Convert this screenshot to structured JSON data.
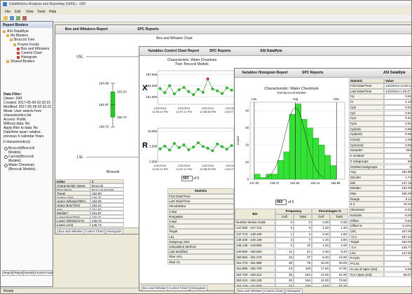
{
  "window": {
    "title": "DataMetrics Analysis and Reporting (GIKE) - DAT",
    "menu": [
      "File",
      "Edit",
      "View",
      "Tools",
      "Help"
    ],
    "status": "Ready"
  },
  "binders": {
    "title": "Report Binders",
    "tree": [
      "ASI DataMyte",
      "My Binders",
      "Broccoli Tree",
      "Frozen Foods",
      "Box and Whiskers",
      "Control Chart",
      "Histogram",
      "Shared Binders"
    ],
    "filter": [
      "Data Filter:",
      "Owner: DAT",
      "Created: 2017-05-09 02:32:23",
      "Modified: 2017-05-09 02:32:23",
      "Mode: User selects from",
      "characteristics list",
      "Access: Public",
      "Without data: No",
      "Apply filter to data: No",
      "Date/time span: relative,",
      "previous 4 calendar Years"
    ],
    "count": "3 characteristic(s)",
    "characteristics": [
      "Broccoli(Broccoli",
      "Models)",
      "Carrots(Broccoli",
      "Models)",
      "Water Chestnuts",
      "(Broccoli Models)"
    ],
    "tabs": [
      "Report",
      "Report",
      "Events",
      "Frozen Foods"
    ]
  },
  "box_report": {
    "tabs": [
      "Box and Whiskers Report",
      "SPC Reports"
    ],
    "title": "Box and Whisker Chart",
    "table": {
      "header": [
        "Index",
        "1"
      ],
      "rows": [
        [
          "Characteristic Name",
          "Broccoli"
        ],
        [
          "Part Name",
          "Broccoli Models"
        ],
        [
          "Target",
          "152.00"
        ],
        [
          "Upper Limit",
          "156.74"
        ],
        [
          "Upper Whisker(99%)",
          "154.09"
        ],
        [
          "Upper Box(75%)",
          "153.24"
        ],
        [
          "Avg",
          "151.97"
        ],
        [
          "Median*",
          "151.97"
        ],
        [
          "Lower Box(25%)",
          "150.71"
        ],
        [
          "Lower Whisker(1%)",
          "149.75"
        ],
        [
          "Lower Limit",
          "146.74"
        ]
      ]
    },
    "bottom_tabs": [
      "Box and Whisker",
      "Control Chart",
      "Histogram"
    ]
  },
  "control_report": {
    "tabs": [
      "Variables Control Chart Report",
      "SPC Reports",
      "ASI DataMyte"
    ],
    "title": "Characteristic: Water Chestnuts",
    "subtitle": "Part: Broccoli Models",
    "pager": [
      "003",
      "of 6"
    ],
    "statistics": {
      "header": "Statistic",
      "rows": [
        "First Date/Time",
        "Last Date/Time",
        "XDoubleBar",
        "X-Bar",
        "RangeBar",
        "S-Bar",
        "USL",
        "Target",
        "LSL",
        "Subgroup Size",
        "Calculation Method",
        "Last Modified",
        "Xbar UCL",
        "Xbar CL"
      ]
    },
    "bottom_tabs": [
      "Box and Whisker",
      "Control Chart",
      "Histogram"
    ]
  },
  "histogram_report": {
    "tabs": [
      "Variables Histogram Report",
      "SPC Reports",
      "ASI DataMyte"
    ],
    "pager": [
      "003",
      "of 6"
    ],
    "statistics": {
      "header": [
        "Statistic",
        "Value"
      ],
      "rows": [
        [
          "First Date/Time",
          "1/22/2014 12:50:14 PM"
        ],
        [
          "Last Date/Time",
          "1/22/2014 1:26:27 PM"
        ],
        [
          "Cp",
          "0.91"
        ],
        [
          "Cr",
          "1.10"
        ],
        [
          "Cpk",
          "0.91"
        ],
        [
          "Cpl",
          "0.91"
        ],
        [
          "Cpu",
          "0.91"
        ],
        [
          "Cpm",
          "0.91"
        ],
        [
          "Cp(est)",
          "0.95"
        ],
        [
          "Cpk(est)",
          "0.95"
        ],
        [
          "Cr(est)",
          "1.05"
        ],
        [
          "Cpm(est)",
          "0.95"
        ],
        [
          "Samples",
          "250"
        ],
        [
          "# Omitted",
          "0"
        ],
        [
          "# Subgroups",
          "50"
        ],
        [
          "Omitted Subgroups",
          "0"
        ],
        [
          "Avg",
          "151.99"
        ],
        [
          "Std dev",
          "1.74"
        ],
        [
          "Min",
          "147.18"
        ],
        [
          "Median",
          "152.05"
        ],
        [
          "Max",
          "156.29"
        ],
        [
          "Range",
          "9.11"
        ],
        [
          "6 σ",
          "10.44"
        ],
        [
          "Skewness",
          "-0.01"
        ],
        [
          "Kurtosis",
          "-0.26"
        ],
        [
          "Offset",
          "0.01"
        ],
        [
          "Offset %",
          "0.12%"
        ],
        [
          "USL",
          "157.00"
        ],
        [
          "+3 σ",
          "157.22"
        ],
        [
          "Target",
          "152.00"
        ],
        [
          "-3 σ",
          "146.77"
        ],
        [
          "LSL",
          "147.00"
        ],
        [
          "#>USL",
          "0"
        ],
        [
          "#<LSL",
          "0"
        ],
        [
          "% out of Spec (est)",
          "0.93"
        ],
        [
          "% in Spec (est)",
          "99.07"
        ]
      ]
    },
    "frequency": {
      "header": [
        "Bin",
        "Frequency",
        "Percentages %"
      ],
      "subheader": [
        "Cell",
        "Total",
        "Cell",
        "Total"
      ],
      "rows": [
        [
          "Number Below Scale",
          "0",
          "0",
          "0.00",
          "0.00"
        ],
        [
          "147.000 - 147.713",
          "3",
          "3",
          "1.20",
          "1.20"
        ],
        [
          "147.713 - 148.425",
          "1",
          "4",
          "0.40",
          "1.60"
        ],
        [
          "148.425 - 149.138",
          "3",
          "7",
          "1.20",
          "2.80"
        ],
        [
          "149.138 - 149.850",
          "3",
          "10",
          "1.20",
          "4.00"
        ],
        [
          "149.850 - 150.563",
          "11",
          "21",
          "4.40",
          "8.40"
        ],
        [
          "150.563 - 151.275",
          "16",
          "37",
          "6.40",
          "14.80"
        ],
        [
          "151.275 - 151.988",
          "38",
          "75",
          "15.20",
          "30.00"
        ],
        [
          "151.988 - 152.700",
          "44",
          "119",
          "17.60",
          "47.60"
        ],
        [
          "152.700 - 153.413",
          "35",
          "154",
          "14.00",
          "61.60"
        ],
        [
          "153.413 - 154.125",
          "30",
          "184",
          "12.00",
          "73.60"
        ],
        [
          "154.125 - 154.838",
          "24",
          "208",
          "9.60",
          "83.20"
        ]
      ]
    },
    "bottom_tabs": [
      "Box and Whisker",
      "Control Chart",
      "Histogram"
    ]
  },
  "chart_data": [
    {
      "type": "box",
      "categories": [
        "Broccoli"
      ],
      "stats": [
        [
          149.75,
          150.71,
          151.97,
          153.24,
          154.09
        ]
      ],
      "color": "#22cc22",
      "ylim": [
        146,
        157.5
      ],
      "limits": [
        {
          "label": "USL",
          "value": 156.74
        },
        {
          "label": "LSL",
          "value": 146.74
        }
      ]
    },
    {
      "type": "line",
      "label": "X",
      "categories": [
        "1/22/2014 12:50:14 PM",
        null,
        null,
        null,
        null,
        "1/22/2014 12:57:11 PM",
        null,
        null,
        null,
        null,
        "1/22/2014 12:58:38 PM",
        null,
        null,
        null,
        null,
        "1/22/2014 1:02:07 PM"
      ],
      "series": [
        {
          "color": "#1a9a1a",
          "values": [
            153.2,
            152.1,
            154.0,
            151.8,
            152.9,
            153.5,
            152.4,
            151.6,
            153.0,
            152.2,
            155.8,
            153.1,
            152.6,
            151.9,
            153.4,
            152.8
          ],
          "colors": [
            "#22cc22",
            "#22cc22",
            "#22cc22",
            "#22cc22",
            "#22cc22",
            "#22cc22",
            "#22cc22",
            "#22cc22",
            "#22cc22",
            "#22cc22",
            "#e02020",
            "#22cc22",
            "#22cc22",
            "#22cc22",
            "#22cc22",
            "#22cc22"
          ]
        }
      ],
      "ylim": [
        149,
        158
      ],
      "yticks": [
        {
          "value": 157,
          "label": "157.000"
        },
        {
          "value": 154,
          "label": "154.000"
        },
        {
          "value": 151,
          "label": "151.000"
        }
      ]
    },
    {
      "type": "line",
      "label": "R",
      "categories": [
        "1/22/2014 12:50:14 PM",
        null,
        null,
        null,
        null,
        "1/22/2014 12:57:11 PM",
        null,
        null,
        null,
        null,
        "1/22/2014 12:58:38 PM",
        null,
        null,
        null,
        null,
        "1/22/2014 1:02:07 PM"
      ],
      "series": [
        {
          "color": "#1a9a1a",
          "values": [
            4.2,
            5.1,
            3.8,
            6.0,
            4.6,
            5.5,
            3.9,
            4.8,
            6.2,
            5.0,
            4.4,
            3.6,
            5.8,
            4.9,
            4.1,
            5.3
          ],
          "colors": [
            "#22cc22",
            "#22cc22",
            "#22cc22",
            "#22cc22",
            "#22cc22",
            "#22cc22",
            "#22cc22",
            "#22cc22",
            "#22cc22",
            "#22cc22",
            "#22cc22",
            "#22cc22",
            "#22cc22",
            "#22cc22",
            "#22cc22",
            "#22cc22"
          ]
        }
      ],
      "ylim": [
        0,
        11
      ],
      "yticks": [
        {
          "value": 10,
          "label": "10.000"
        },
        {
          "value": 5,
          "label": "5.000"
        },
        {
          "value": 0,
          "label": "0.000"
        }
      ]
    },
    {
      "type": "histogram",
      "title": "Characteristic: Water Chestnuts",
      "subtitle": "Part:Broccoli Models",
      "y_label": "Count",
      "color": "#33e033",
      "bins": [
        147.0,
        147.713,
        148.425,
        149.138,
        149.85,
        150.563,
        151.275,
        151.988,
        152.7,
        153.413,
        154.125,
        154.838,
        155.55,
        156.263,
        156.975
      ],
      "values": [
        3,
        1,
        3,
        3,
        11,
        16,
        38,
        44,
        35,
        30,
        24,
        20,
        14,
        8
      ],
      "xlim": [
        146.5,
        158
      ],
      "ylim": [
        0,
        45
      ],
      "yticks": [
        0,
        10,
        20,
        30,
        40
      ],
      "xticks": [
        {
          "value": 147,
          "label": "147.00"
        },
        {
          "value": 149.47,
          "label": "149.47"
        },
        {
          "value": 151.94,
          "label": "151.94"
        },
        {
          "value": 154.41,
          "label": "154.41"
        },
        {
          "value": 156.88,
          "label": "156.88"
        }
      ],
      "markers": [
        {
          "label": "LSL",
          "value": 147
        },
        {
          "label": "Avg",
          "value": 151.99
        },
        {
          "label": "USL",
          "value": 157
        }
      ]
    }
  ]
}
